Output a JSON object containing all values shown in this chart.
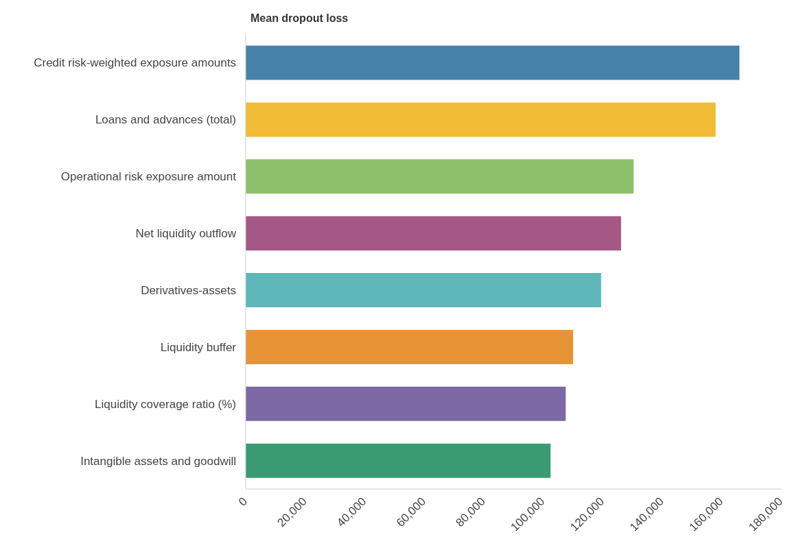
{
  "chart_data": {
    "type": "bar",
    "orientation": "horizontal",
    "title": "Mean dropout loss",
    "categories": [
      "Credit risk-weighted exposure amounts",
      "Loans and advances (total)",
      "Operational risk exposure amount",
      "Net liquidity outflow",
      "Derivatives-assets",
      "Liquidity buffer",
      "Liquidity coverage ratio (%)",
      "Intangible assets and goodwill"
    ],
    "values": [
      166000,
      158000,
      130400,
      126200,
      119500,
      110100,
      107600,
      102500
    ],
    "colors": [
      "#4682a9",
      "#f0bb35",
      "#8dbf6b",
      "#a55786",
      "#5eb7b8",
      "#e79436",
      "#7d68a6",
      "#3a9a72"
    ],
    "xlim": [
      0,
      180000
    ],
    "xticks": [
      0,
      {
        "value": 20000,
        "label": "20,000"
      },
      {
        "value": 40000,
        "label": "40,000"
      },
      {
        "value": 60000,
        "label": "60,000"
      },
      {
        "value": 80000,
        "label": "80,000"
      },
      {
        "value": 100000,
        "label": "100,000"
      },
      {
        "value": 120000,
        "label": "120,000"
      },
      {
        "value": 140000,
        "label": "140,000"
      },
      {
        "value": 160000,
        "label": "160,000"
      },
      {
        "value": 180000,
        "label": "180,000"
      }
    ],
    "grid": false,
    "legend": false
  }
}
